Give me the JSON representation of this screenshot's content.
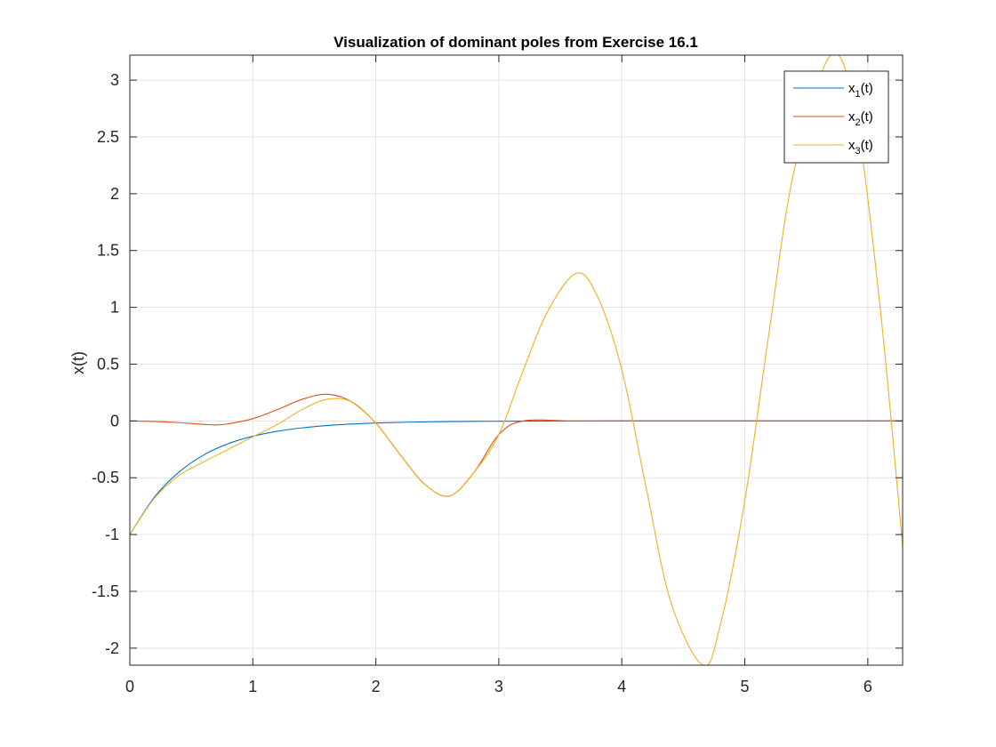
{
  "chart_data": {
    "type": "line",
    "title": "Visualization of dominant poles from Exercise 16.1",
    "xlabel": "",
    "ylabel": "x(t)",
    "xlim": [
      0,
      6.283
    ],
    "ylim": [
      -2.15,
      3.22
    ],
    "xticks": [
      0,
      1,
      2,
      3,
      4,
      5,
      6
    ],
    "xtick_labels": [
      "0",
      "1",
      "2",
      "3",
      "4",
      "5",
      "6"
    ],
    "yticks": [
      -2,
      -1.5,
      -1,
      -0.5,
      0,
      0.5,
      1,
      1.5,
      2,
      2.5,
      3
    ],
    "ytick_labels": [
      "-2",
      "-1.5",
      "-1",
      "-0.5",
      "0",
      "0.5",
      "1",
      "1.5",
      "2",
      "2.5",
      "3"
    ],
    "grid": true,
    "legend_position": "top-right",
    "series": [
      {
        "name": "x1(t)",
        "label_main": "x",
        "label_sub": "1",
        "label_tail": "(t)",
        "color": "#0072BD",
        "x": [
          0,
          0.2,
          0.4,
          0.6,
          0.8,
          1.0,
          1.2,
          1.4,
          1.6,
          1.8,
          2.0,
          2.4,
          2.8,
          3.2,
          4.0,
          5.0,
          6.0,
          6.283
        ],
        "y": [
          -1.0,
          -0.67,
          -0.45,
          -0.3,
          -0.2,
          -0.135,
          -0.091,
          -0.061,
          -0.041,
          -0.027,
          -0.018,
          -0.008,
          -0.004,
          -0.002,
          0.0,
          0.0,
          0.0,
          0.0
        ]
      },
      {
        "name": "x2(t)",
        "label_main": "x",
        "label_sub": "2",
        "label_tail": "(t)",
        "color": "#D95319",
        "x": [
          0,
          0.2,
          0.4,
          0.6,
          0.7,
          0.8,
          1.0,
          1.2,
          1.4,
          1.6,
          1.8,
          2.0,
          2.2,
          2.4,
          2.6,
          2.8,
          3.0,
          3.2,
          3.6,
          4.0,
          5.0,
          6.0,
          6.283
        ],
        "y": [
          0.0,
          -0.005,
          -0.015,
          -0.03,
          -0.035,
          -0.025,
          0.02,
          0.1,
          0.19,
          0.235,
          0.17,
          -0.02,
          -0.3,
          -0.56,
          -0.66,
          -0.45,
          -0.12,
          0.0,
          0.0,
          0.0,
          0.0,
          0.0,
          0.0
        ]
      },
      {
        "name": "x3(t)",
        "label_main": "x",
        "label_sub": "3",
        "label_tail": "(t)",
        "color": "#EDB120",
        "x": [
          0,
          0.2,
          0.4,
          0.6,
          0.8,
          1.0,
          1.2,
          1.4,
          1.6,
          1.8,
          2.0,
          2.2,
          2.4,
          2.6,
          2.8,
          3.0,
          3.2,
          3.4,
          3.63,
          3.8,
          4.0,
          4.2,
          4.4,
          4.66,
          4.8,
          5.0,
          5.2,
          5.4,
          5.7,
          5.9,
          6.1,
          6.283
        ],
        "y": [
          -1.0,
          -0.68,
          -0.48,
          -0.36,
          -0.25,
          -0.14,
          -0.03,
          0.1,
          0.19,
          0.17,
          -0.02,
          -0.3,
          -0.56,
          -0.66,
          -0.45,
          -0.12,
          0.45,
          0.97,
          1.3,
          1.1,
          0.45,
          -0.6,
          -1.6,
          -2.15,
          -1.8,
          -0.7,
          0.8,
          2.2,
          3.22,
          2.7,
          1.0,
          -1.1
        ]
      }
    ]
  }
}
